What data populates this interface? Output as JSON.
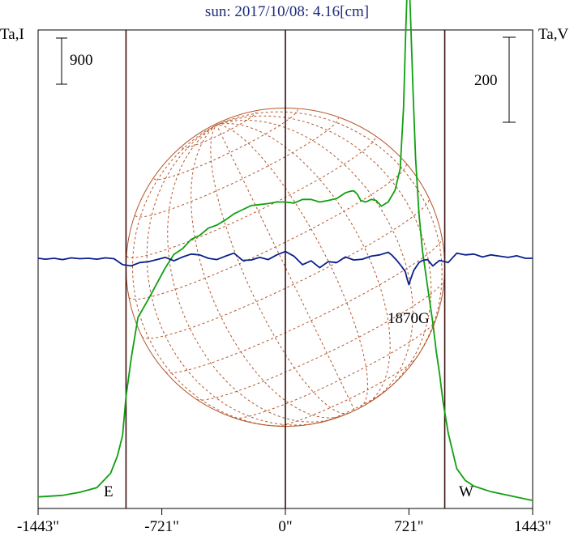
{
  "chart_data": {
    "type": "line",
    "title": "sun: 2017/10/08: 4.16[cm]",
    "left_axis_label": "Ta,I",
    "right_axis_label": "Ta,V",
    "x_ticks": [
      {
        "value": -1443,
        "label": "-1443\""
      },
      {
        "value": -721,
        "label": "-721\""
      },
      {
        "value": 0,
        "label": "0\""
      },
      {
        "value": 721,
        "label": "721\""
      },
      {
        "value": 1443,
        "label": "1443\""
      }
    ],
    "xlim": [
      -1443,
      1443
    ],
    "vertical_lines": [
      -930,
      0,
      930
    ],
    "limb_labels": {
      "east": "E",
      "west": "W"
    },
    "scale_bars": {
      "left": {
        "label": "900",
        "value": 900
      },
      "right": {
        "label": "200",
        "value": 200
      }
    },
    "annotation": {
      "label": "1870G",
      "x": 721
    },
    "solar_disk": {
      "radius_arcsec": 930,
      "color": "#b5562b"
    },
    "series": [
      {
        "name": "I",
        "color": "#10a010",
        "axis": "left",
        "x": [
          -1443,
          -1300,
          -1200,
          -1100,
          -1020,
          -980,
          -950,
          -930,
          -900,
          -860,
          -800,
          -700,
          -650,
          -600,
          -550,
          -500,
          -450,
          -400,
          -350,
          -300,
          -250,
          -200,
          -150,
          -100,
          -50,
          0,
          50,
          100,
          150,
          200,
          250,
          300,
          350,
          380,
          400,
          420,
          440,
          470,
          500,
          530,
          560,
          600,
          640,
          670,
          690,
          700,
          710,
          721,
          730,
          745,
          760,
          780,
          800,
          830,
          860,
          880,
          900,
          920,
          950,
          1000,
          1050,
          1100,
          1200,
          1300,
          1400,
          1443
        ],
        "y": [
          100,
          130,
          190,
          280,
          560,
          900,
          1300,
          2050,
          2800,
          3600,
          3950,
          4570,
          4830,
          4940,
          5120,
          5200,
          5340,
          5400,
          5500,
          5620,
          5700,
          5780,
          5800,
          5820,
          5850,
          5850,
          5830,
          5900,
          5900,
          5850,
          5880,
          5920,
          6030,
          6060,
          6070,
          6000,
          5880,
          5850,
          5900,
          5880,
          5770,
          5850,
          6080,
          6500,
          7700,
          8950,
          9950,
          10300,
          9500,
          8000,
          6700,
          5600,
          4900,
          4200,
          3500,
          2950,
          2500,
          1950,
          1350,
          650,
          420,
          310,
          200,
          130,
          60,
          30
        ]
      },
      {
        "name": "V",
        "color": "#0a1f8c",
        "axis": "right",
        "x": [
          -1443,
          -1400,
          -1350,
          -1300,
          -1250,
          -1200,
          -1150,
          -1100,
          -1050,
          -1000,
          -950,
          -900,
          -850,
          -800,
          -750,
          -700,
          -650,
          -600,
          -550,
          -500,
          -450,
          -400,
          -350,
          -300,
          -250,
          -200,
          -150,
          -100,
          -50,
          0,
          50,
          100,
          150,
          200,
          250,
          300,
          350,
          400,
          450,
          500,
          550,
          600,
          620,
          650,
          680,
          700,
          710,
          721,
          730,
          750,
          780,
          800,
          830,
          860,
          900,
          950,
          1000,
          1050,
          1100,
          1150,
          1200,
          1250,
          1300,
          1350,
          1400,
          1443
        ],
        "y": [
          0,
          -2,
          0,
          -3,
          1,
          -1,
          0,
          -2,
          1,
          -1,
          -15,
          -18,
          -10,
          -8,
          -3,
          2,
          -6,
          3,
          10,
          8,
          0,
          -3,
          5,
          12,
          -5,
          -4,
          2,
          -3,
          8,
          16,
          5,
          -15,
          -6,
          -22,
          -8,
          -10,
          3,
          -4,
          -2,
          5,
          8,
          14,
          8,
          -5,
          -20,
          -32,
          -48,
          -62,
          -50,
          -28,
          -10,
          -5,
          -3,
          -18,
          -5,
          -10,
          12,
          8,
          10,
          3,
          8,
          5,
          2,
          6,
          0,
          0
        ]
      }
    ]
  }
}
